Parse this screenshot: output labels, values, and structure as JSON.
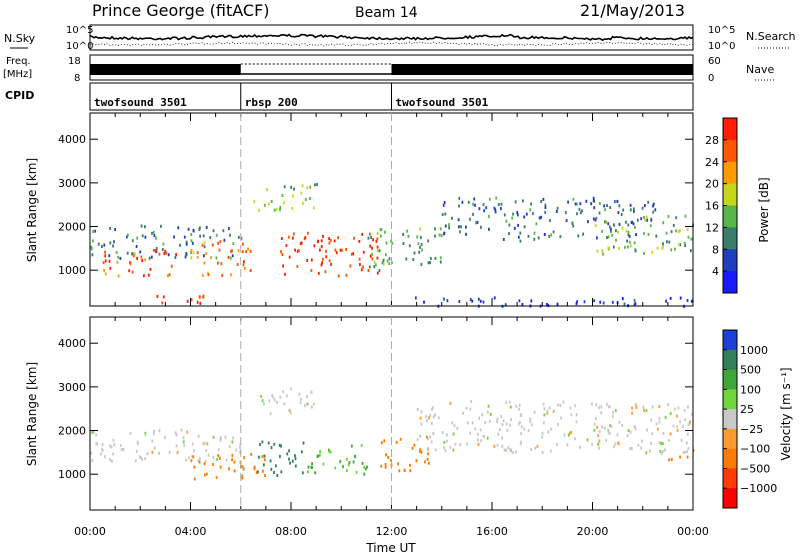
{
  "header": {
    "station": "Prince George (fitACF)",
    "beam": "Beam 14",
    "date": "21/May/2013"
  },
  "strips": {
    "nsky_label": "N.Sky",
    "nsearch_label": "N.Search",
    "freq_label_top": "Freq.",
    "freq_label_unit": "[MHz]",
    "nave_label": "Nave",
    "cpid_label": "CPID",
    "noise_left_ticks": [
      "10^5",
      "10^0"
    ],
    "noise_right_ticks": [
      "10^5",
      "10^0"
    ],
    "freq_left_ticks": [
      "18",
      "8"
    ],
    "freq_right_ticks": [
      "60",
      "0"
    ],
    "cpid_segments": [
      {
        "label": "twofsound 3501",
        "start_h": 0,
        "end_h": 6
      },
      {
        "label": "rbsp 200",
        "start_h": 6,
        "end_h": 12
      },
      {
        "label": "twofsound 3501",
        "start_h": 12,
        "end_h": 24
      }
    ]
  },
  "axes": {
    "ylabel": "Slant Range [km]",
    "xlabel": "Time UT",
    "y_ticks": [
      "1000",
      "2000",
      "3000",
      "4000"
    ],
    "x_ticks": [
      "00:00",
      "04:00",
      "08:00",
      "12:00",
      "16:00",
      "20:00",
      "00:00"
    ]
  },
  "colorbars": {
    "power_label": "Power [dB]",
    "power_ticks": [
      "4",
      "8",
      "12",
      "16",
      "20",
      "24",
      "28"
    ],
    "power_colors": [
      "#1a1aff",
      "#1f3fbf",
      "#3a7d6a",
      "#57b84a",
      "#c8d61a",
      "#ff9a00",
      "#ff5500",
      "#ff1e00"
    ],
    "velocity_label": "Velocity [m s⁻¹]",
    "velocity_ticks": [
      "1000",
      "500",
      "100",
      "25",
      "−25",
      "−100",
      "−500",
      "−1000"
    ],
    "velocity_colors": [
      "#1b3fd8",
      "#2f7f5a",
      "#3fa63a",
      "#6ed63a",
      "#c8c8c8",
      "#ff9a30",
      "#ff7a00",
      "#ff3b00",
      "#ff0000"
    ]
  },
  "chart_data": {
    "type": "heatmap",
    "title": "Prince George (fitACF)  Beam 14  21/May/2013",
    "xlabel": "Time UT",
    "ylabel": "Slant Range [km]",
    "xlim": [
      0,
      24
    ],
    "ylim": [
      180,
      4600
    ],
    "panels": [
      {
        "name": "Power",
        "unit": "dB",
        "color_range": [
          0,
          30
        ],
        "regions": [
          {
            "t": [
              0,
              6
            ],
            "r": [
              1300,
              2050
            ],
            "level": 9
          },
          {
            "t": [
              0.5,
              3.5
            ],
            "r": [
              900,
              1500
            ],
            "level": 26
          },
          {
            "t": [
              2.5,
              5.5
            ],
            "r": [
              250,
              450
            ],
            "level": 28
          },
          {
            "t": [
              4,
              6.5
            ],
            "r": [
              900,
              1700
            ],
            "level": 22
          },
          {
            "t": [
              7.5,
              11.5
            ],
            "r": [
              900,
              1900
            ],
            "level": 27
          },
          {
            "t": [
              6.5,
              9
            ],
            "r": [
              2400,
              3000
            ],
            "level": 14
          },
          {
            "t": [
              11,
              14
            ],
            "r": [
              1000,
              2000
            ],
            "level": 12
          },
          {
            "t": [
              14,
              22.5
            ],
            "r": [
              1700,
              2700
            ],
            "level": 8
          },
          {
            "t": [
              20,
              24
            ],
            "r": [
              1400,
              2300
            ],
            "level": 14
          },
          {
            "t": [
              12,
              24
            ],
            "r": [
              200,
              400
            ],
            "level": 4
          }
        ]
      },
      {
        "name": "Velocity",
        "unit": "m s-1",
        "color_range": [
          -1000,
          1000
        ],
        "regions": [
          {
            "t": [
              0,
              6
            ],
            "r": [
              1300,
              2050
            ],
            "level": 0
          },
          {
            "t": [
              4,
              7
            ],
            "r": [
              900,
              1500
            ],
            "level": -300
          },
          {
            "t": [
              6.5,
              8.5
            ],
            "r": [
              1000,
              1800
            ],
            "level": 200
          },
          {
            "t": [
              8.5,
              11
            ],
            "r": [
              1000,
              1700
            ],
            "level": 60
          },
          {
            "t": [
              11.5,
              13.5
            ],
            "r": [
              1100,
              1900
            ],
            "level": -400
          },
          {
            "t": [
              6.5,
              9
            ],
            "r": [
              2400,
              3000
            ],
            "level": 0
          },
          {
            "t": [
              13,
              24
            ],
            "r": [
              1500,
              2700
            ],
            "level": 0
          },
          {
            "t": [
              23,
              24
            ],
            "r": [
              1300,
              1600
            ],
            "level": -300
          }
        ]
      }
    ]
  }
}
